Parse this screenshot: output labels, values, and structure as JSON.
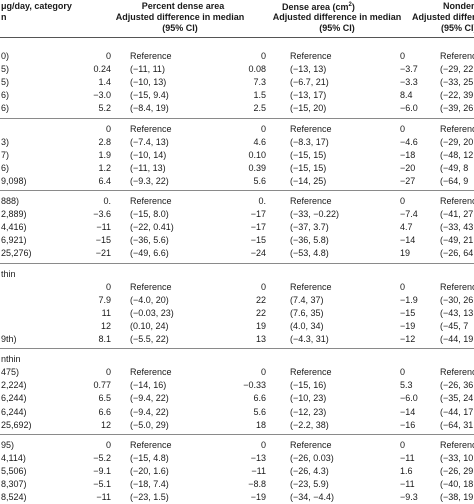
{
  "header": {
    "row1": {
      "col0": "μg/day, category",
      "col1": "Percent dense area",
      "col2a": "Dense area (cm",
      "col2sup": "2",
      "col2b": ")",
      "col3": "Nondense"
    },
    "row2": {
      "col0": "n",
      "col1": "Adjusted difference in median",
      "col2": "Adjusted difference in median",
      "col3": "Adjusted differ"
    },
    "row3": {
      "col1": "(95% CI)",
      "col2": "(95% CI)",
      "col3": "(95% CI)"
    }
  },
  "sections": [
    {
      "rows": [
        {
          "label": "0)",
          "v1": "0",
          "ci1": "Reference",
          "v2": "0",
          "ci2": "Reference",
          "v3": "0",
          "ci3": "Reference"
        },
        {
          "label": "5)",
          "v1": "0.24",
          "ci1": "(−11, 11)",
          "v2": "0.08",
          "ci2": "(−13, 13)",
          "v3": "−3.7",
          "ci3": "(−29, 22"
        },
        {
          "label": "5)",
          "v1": "1.4",
          "ci1": "(−10, 13)",
          "v2": "7.3",
          "ci2": "(−6.7, 21)",
          "v3": "−3.3",
          "ci3": "(−33, 25"
        },
        {
          "label": "6)",
          "v1": "−3.0",
          "ci1": "(−15, 9.4)",
          "v2": "1.5",
          "ci2": "(−13, 17)",
          "v3": "8.4",
          "ci3": "(−22, 39"
        },
        {
          "label": "6)",
          "v1": "5.2",
          "ci1": "(−8.4, 19)",
          "v2": "2.5",
          "ci2": "(−15, 20)",
          "v3": "−6.0",
          "ci3": "(−39, 26"
        }
      ]
    },
    {
      "rows": [
        {
          "label": "",
          "v1": "0",
          "ci1": "Reference",
          "v2": "0",
          "ci2": "Reference",
          "v3": "0",
          "ci3": "Reference"
        },
        {
          "label": "3)",
          "v1": "2.8",
          "ci1": "(−7.4, 13)",
          "v2": "4.6",
          "ci2": "(−8.3, 17)",
          "v3": "−4.6",
          "ci3": "(−29, 20"
        },
        {
          "label": "7)",
          "v1": "1.9",
          "ci1": "(−10, 14)",
          "v2": "0.10",
          "ci2": "(−15, 15)",
          "v3": "−18",
          "ci3": "(−48, 12"
        },
        {
          "label": "6)",
          "v1": "1.2",
          "ci1": "(−11, 13)",
          "v2": "0.39",
          "ci2": "(−15, 15)",
          "v3": "−20",
          "ci3": "(−49, 8"
        },
        {
          "label": "9,098)",
          "v1": "6.4",
          "ci1": "(−9.3, 22)",
          "v2": "5.6",
          "ci2": "(−14, 25)",
          "v3": "−27",
          "ci3": "(−64, 9"
        }
      ]
    },
    {
      "rows": [
        {
          "label": "888)",
          "v1": "0.",
          "ci1": "Reference",
          "v2": "0.",
          "ci2": "Reference",
          "v3": "0",
          "ci3": "Reference"
        },
        {
          "label": "2,889)",
          "v1": "−3.6",
          "ci1": "(−15, 8.0)",
          "v2": "−17",
          "ci2": "(−33, −0.22)",
          "v3": "−7.4",
          "ci3": "(−41, 27"
        },
        {
          "label": "4,416)",
          "v1": "−11",
          "ci1": "(−22, 0.41)",
          "v2": "−17",
          "ci2": "(−37, 3.7)",
          "v3": "4.7",
          "ci3": "(−33, 43"
        },
        {
          "label": "6,921)",
          "v1": "−15",
          "ci1": "(−36, 5.6)",
          "v2": "−15",
          "ci2": "(−36, 5.8)",
          "v3": "−14",
          "ci3": "(−49, 21"
        },
        {
          "label": "25,276)",
          "v1": "−21",
          "ci1": "(−49, 6.6)",
          "v2": "−24",
          "ci2": "(−53, 4.8)",
          "v3": "19",
          "ci3": "(−26, 64"
        }
      ]
    },
    {
      "rows": [
        {
          "label": "thin",
          "v1": "",
          "ci1": "",
          "v2": "",
          "ci2": "",
          "v3": "",
          "ci3": ""
        },
        {
          "label": "",
          "v1": "0",
          "ci1": "Reference",
          "v2": "0",
          "ci2": "Reference",
          "v3": "0",
          "ci3": "Reference"
        },
        {
          "label": "",
          "v1": "7.9",
          "ci1": "(−4.0, 20)",
          "v2": "22",
          "ci2": "(7.4, 37)",
          "v3": "−1.9",
          "ci3": "(−30, 26"
        },
        {
          "label": "",
          "v1": "11",
          "ci1": "(−0.03, 23)",
          "v2": "22",
          "ci2": "(7.6, 35)",
          "v3": "−15",
          "ci3": "(−43, 13"
        },
        {
          "label": "",
          "v1": "12",
          "ci1": "(0.10, 24)",
          "v2": "19",
          "ci2": "(4.0, 34)",
          "v3": "−19",
          "ci3": "(−45, 7"
        },
        {
          "label": "9th)",
          "v1": "8.1",
          "ci1": "(−5.5, 22)",
          "v2": "13",
          "ci2": "(−4.3, 31)",
          "v3": "−12",
          "ci3": "(−44, 19"
        }
      ]
    },
    {
      "rows": [
        {
          "label": "nthin",
          "v1": "",
          "ci1": "",
          "v2": "",
          "ci2": "",
          "v3": "",
          "ci3": ""
        },
        {
          "label": "475)",
          "v1": "0",
          "ci1": "Reference",
          "v2": "0",
          "ci2": "Reference",
          "v3": "0",
          "ci3": "Reference"
        },
        {
          "label": "2,224)",
          "v1": "0.77",
          "ci1": "(−14, 16)",
          "v2": "−0.33",
          "ci2": "(−15, 16)",
          "v3": "5.3",
          "ci3": "(−26, 36"
        },
        {
          "label": "6,244)",
          "v1": "6.5",
          "ci1": "(−9.4, 22)",
          "v2": "6.6",
          "ci2": "(−10, 23)",
          "v3": "−6.0",
          "ci3": "(−35, 24"
        },
        {
          "label": "6,244)",
          "v1": "6.6",
          "ci1": "(−9.4, 22)",
          "v2": "5.6",
          "ci2": "(−12, 23)",
          "v3": "−14",
          "ci3": "(−44, 17"
        },
        {
          "label": "25,692)",
          "v1": "12",
          "ci1": "(−5.0, 29)",
          "v2": "18",
          "ci2": "(−2.2, 38)",
          "v3": "−16",
          "ci3": "(−64, 31"
        }
      ]
    },
    {
      "rows": [
        {
          "label": "95)",
          "v1": "0",
          "ci1": "Reference",
          "v2": "0",
          "ci2": "Reference",
          "v3": "0",
          "ci3": "Reference"
        },
        {
          "label": "4,114)",
          "v1": "−5.2",
          "ci1": "(−15, 4.8)",
          "v2": "−13",
          "ci2": "(−26, 0.03)",
          "v3": "−11",
          "ci3": "(−33, 10"
        },
        {
          "label": "5,506)",
          "v1": "−9.1",
          "ci1": "(−20, 1.6)",
          "v2": "−11",
          "ci2": "(−26, 4.3)",
          "v3": "1.6",
          "ci3": "(−26, 29"
        },
        {
          "label": "8,307)",
          "v1": "−5.1",
          "ci1": "(−18, 7.4)",
          "v2": "−8.8",
          "ci2": "(−23, 5.9)",
          "v3": "−11",
          "ci3": "(−40, 18"
        },
        {
          "label": "8,524)",
          "v1": "−11",
          "ci1": "(−23, 1.5)",
          "v2": "−19",
          "ci2": "(−34, −4.4)",
          "v3": "−9.3",
          "ci3": "(−38, 19"
        }
      ]
    }
  ]
}
